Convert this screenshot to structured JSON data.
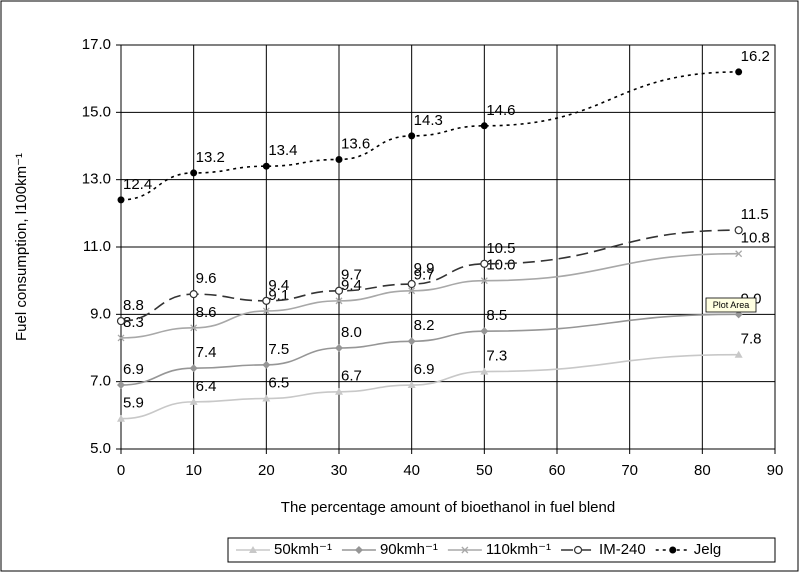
{
  "chart_data": {
    "type": "line",
    "x_label": "The percentage amount of bioethanol in fuel blend",
    "y_label": "Fuel consumption, l100km⁻¹",
    "tooltip": "Plot Area",
    "x": [
      0,
      10,
      20,
      30,
      40,
      50,
      85
    ],
    "xlim": [
      0,
      90
    ],
    "xticks": [
      0,
      10,
      20,
      30,
      40,
      50,
      60,
      70,
      80,
      90
    ],
    "ylim": [
      5,
      17
    ],
    "yticks": [
      {
        "value": 5,
        "label": "5.0"
      },
      {
        "value": 7,
        "label": "7.0"
      },
      {
        "value": 9,
        "label": "9.0"
      },
      {
        "value": 11,
        "label": "11.0"
      },
      {
        "value": 13,
        "label": "13.0"
      },
      {
        "value": 15,
        "label": "15.0"
      },
      {
        "value": 17,
        "label": "17.0"
      }
    ],
    "grid": true,
    "legend": "bottom",
    "series": [
      {
        "name": "50kmh⁻¹",
        "color": "#c8c8c8",
        "marker": "triangle",
        "dash": "solid",
        "values": [
          5.9,
          6.4,
          6.5,
          6.7,
          6.9,
          7.3,
          7.8
        ],
        "value_labels": [
          "5.9",
          "6.4",
          "6.5",
          "6.7",
          "6.9",
          "7.3",
          "7.8"
        ]
      },
      {
        "name": "90kmh⁻¹",
        "color": "#969696",
        "marker": "diamond",
        "dash": "solid",
        "values": [
          6.9,
          7.4,
          7.5,
          8.0,
          8.2,
          8.5,
          9.0
        ],
        "value_labels": [
          "6.9",
          "7.4",
          "7.5",
          "8.0",
          "8.2",
          "8.5",
          "9.0"
        ]
      },
      {
        "name": "110kmh⁻¹",
        "color": "#a8a8a8",
        "marker": "cross",
        "dash": "solid",
        "values": [
          8.3,
          8.6,
          9.1,
          9.4,
          9.7,
          10.0,
          10.8
        ],
        "value_labels": [
          "8.3",
          "8.6",
          "9.1",
          "9.4",
          "9.7",
          "10.0",
          "10.8"
        ]
      },
      {
        "name": "IM-240",
        "color": "#333333",
        "marker": "open-circle",
        "dash": "dashed",
        "values": [
          8.8,
          9.6,
          9.4,
          9.7,
          9.9,
          10.5,
          11.5
        ],
        "value_labels": [
          "8.8",
          "9.6",
          "9.4",
          "9.7",
          "9.9",
          "10.5",
          "11.5"
        ]
      },
      {
        "name": "Jelg",
        "color": "#000000",
        "marker": "circle",
        "dash": "dotted",
        "values": [
          12.4,
          13.2,
          13.4,
          13.6,
          14.3,
          14.6,
          16.2
        ],
        "value_labels": [
          "12.4",
          "13.2",
          "13.4",
          "13.6",
          "14.3",
          "14.6",
          "16.2"
        ]
      }
    ]
  }
}
